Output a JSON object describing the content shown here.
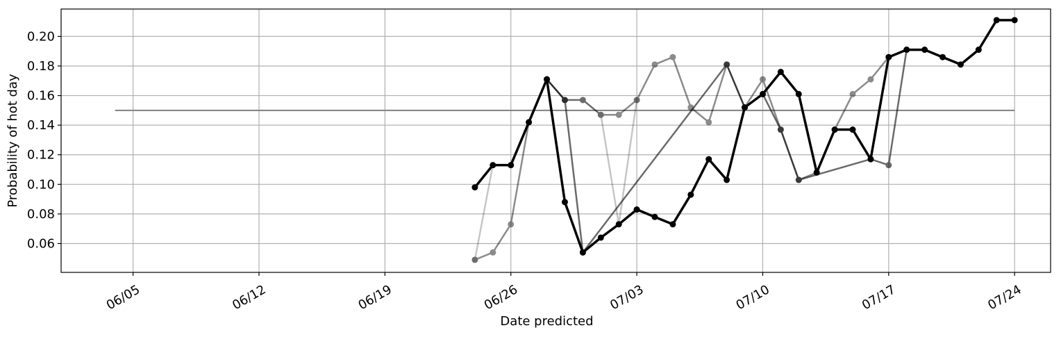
{
  "chart_data": {
    "type": "line",
    "title": "",
    "xlabel": "Date predicted",
    "ylabel": "Probability of hot day",
    "x_tick_labels": [
      "06/05",
      "06/12",
      "06/19",
      "06/26",
      "07/03",
      "07/10",
      "07/17",
      "07/24"
    ],
    "y_tick_labels": [
      "0.06",
      "0.08",
      "0.10",
      "0.12",
      "0.14",
      "0.16",
      "0.18",
      "0.20"
    ],
    "y_ticks": [
      0.06,
      0.08,
      0.1,
      0.12,
      0.14,
      0.16,
      0.18,
      0.2
    ],
    "ylim": [
      0.0405,
      0.2185
    ],
    "xlim": [
      "2019-06-01",
      "2019-07-26"
    ],
    "grid": true,
    "baseline": {
      "x_start": "2019-06-04",
      "x_end": "2019-07-24",
      "value": 0.15,
      "color": "#808080"
    },
    "series": [
      {
        "color": "#000000",
        "opacity": 0.22,
        "line_width": 2.5,
        "points": [
          {
            "x": "2019-06-24",
            "y": 0.049
          },
          {
            "x": "2019-06-25",
            "y": 0.113
          },
          {
            "x": "2019-06-26",
            "y": 0.113
          },
          {
            "x": "2019-06-27",
            "y": 0.142
          },
          {
            "x": "2019-06-28",
            "y": 0.171
          },
          {
            "x": "2019-06-29",
            "y": 0.157
          },
          {
            "x": "2019-06-30",
            "y": 0.157
          },
          {
            "x": "2019-07-01",
            "y": 0.147
          },
          {
            "x": "2019-07-02",
            "y": 0.073
          },
          {
            "x": "2019-07-03",
            "y": 0.157
          }
        ]
      },
      {
        "color": "#000000",
        "opacity": 0.45,
        "line_width": 2.5,
        "points": [
          {
            "x": "2019-06-24",
            "y": 0.049
          },
          {
            "x": "2019-06-25",
            "y": 0.054
          },
          {
            "x": "2019-06-26",
            "y": 0.073
          },
          {
            "x": "2019-06-27",
            "y": 0.142
          },
          {
            "x": "2019-06-28",
            "y": 0.171
          },
          {
            "x": "2019-06-29",
            "y": 0.157
          },
          {
            "x": "2019-06-30",
            "y": 0.157
          },
          {
            "x": "2019-07-01",
            "y": 0.147
          },
          {
            "x": "2019-07-02",
            "y": 0.147
          },
          {
            "x": "2019-07-03",
            "y": 0.157
          },
          {
            "x": "2019-07-04",
            "y": 0.181
          },
          {
            "x": "2019-07-05",
            "y": 0.186
          },
          {
            "x": "2019-07-06",
            "y": 0.152
          },
          {
            "x": "2019-07-07",
            "y": 0.142
          },
          {
            "x": "2019-07-08",
            "y": 0.181
          },
          {
            "x": "2019-07-09",
            "y": 0.152
          },
          {
            "x": "2019-07-10",
            "y": 0.171
          },
          {
            "x": "2019-07-11",
            "y": 0.137
          },
          {
            "x": "2019-07-12",
            "y": 0.103
          },
          {
            "x": "2019-07-13",
            "y": 0.108
          },
          {
            "x": "2019-07-14",
            "y": 0.137
          },
          {
            "x": "2019-07-15",
            "y": 0.161
          },
          {
            "x": "2019-07-16",
            "y": 0.171
          },
          {
            "x": "2019-07-17",
            "y": 0.186
          }
        ]
      },
      {
        "color": "#000000",
        "opacity": 0.58,
        "line_width": 2.5,
        "points": [
          {
            "x": "2019-06-28",
            "y": 0.171
          },
          {
            "x": "2019-06-29",
            "y": 0.157
          },
          {
            "x": "2019-06-30",
            "y": 0.054
          },
          {
            "x": "2019-07-08",
            "y": 0.181
          },
          {
            "x": "2019-07-09",
            "y": 0.152
          },
          {
            "x": "2019-07-10",
            "y": 0.161
          },
          {
            "x": "2019-07-11",
            "y": 0.137
          },
          {
            "x": "2019-07-12",
            "y": 0.103
          },
          {
            "x": "2019-07-16",
            "y": 0.117
          },
          {
            "x": "2019-07-17",
            "y": 0.113
          },
          {
            "x": "2019-07-18",
            "y": 0.191
          }
        ]
      },
      {
        "color": "#000000",
        "opacity": 1.0,
        "line_width": 3.5,
        "points": [
          {
            "x": "2019-06-24",
            "y": 0.098
          },
          {
            "x": "2019-06-25",
            "y": 0.113
          },
          {
            "x": "2019-06-26",
            "y": 0.113
          },
          {
            "x": "2019-06-27",
            "y": 0.142
          },
          {
            "x": "2019-06-28",
            "y": 0.171
          },
          {
            "x": "2019-06-29",
            "y": 0.088
          },
          {
            "x": "2019-06-30",
            "y": 0.054
          },
          {
            "x": "2019-07-01",
            "y": 0.064
          },
          {
            "x": "2019-07-02",
            "y": 0.073
          },
          {
            "x": "2019-07-03",
            "y": 0.083
          },
          {
            "x": "2019-07-04",
            "y": 0.078
          },
          {
            "x": "2019-07-05",
            "y": 0.073
          },
          {
            "x": "2019-07-06",
            "y": 0.093
          },
          {
            "x": "2019-07-07",
            "y": 0.117
          },
          {
            "x": "2019-07-08",
            "y": 0.103
          },
          {
            "x": "2019-07-09",
            "y": 0.152
          },
          {
            "x": "2019-07-10",
            "y": 0.161
          },
          {
            "x": "2019-07-11",
            "y": 0.176
          },
          {
            "x": "2019-07-12",
            "y": 0.161
          },
          {
            "x": "2019-07-13",
            "y": 0.108
          },
          {
            "x": "2019-07-14",
            "y": 0.137
          },
          {
            "x": "2019-07-15",
            "y": 0.137
          },
          {
            "x": "2019-07-16",
            "y": 0.117
          },
          {
            "x": "2019-07-17",
            "y": 0.186
          },
          {
            "x": "2019-07-18",
            "y": 0.191
          },
          {
            "x": "2019-07-19",
            "y": 0.191
          },
          {
            "x": "2019-07-20",
            "y": 0.186
          },
          {
            "x": "2019-07-21",
            "y": 0.181
          },
          {
            "x": "2019-07-22",
            "y": 0.191
          },
          {
            "x": "2019-07-23",
            "y": 0.211
          },
          {
            "x": "2019-07-24",
            "y": 0.211
          }
        ]
      }
    ]
  }
}
